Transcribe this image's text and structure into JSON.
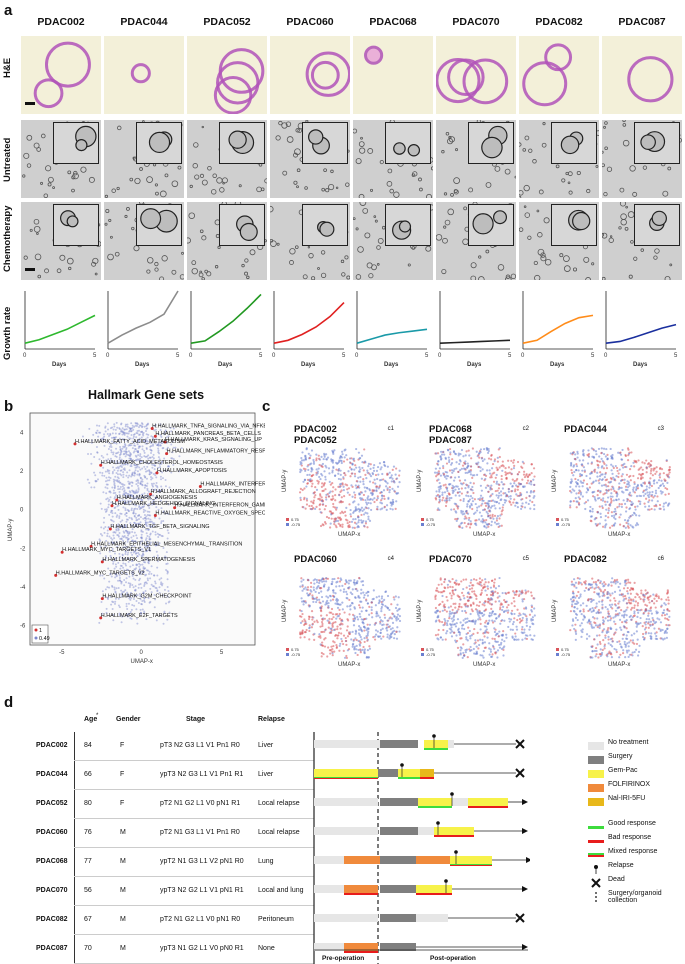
{
  "panels": {
    "a": "a",
    "b": "b",
    "c": "c",
    "d": "d"
  },
  "panel_a": {
    "samples": [
      "PDAC002",
      "PDAC044",
      "PDAC052",
      "PDAC060",
      "PDAC068",
      "PDAC070",
      "PDAC082",
      "PDAC087"
    ],
    "rows": {
      "he": "H&E",
      "untreated": "Untreated",
      "chemo": "Chemotherapy",
      "growth": "Growth rate"
    },
    "x_axis_label": "Days",
    "x_ticks": [
      "0",
      "5"
    ],
    "colors": [
      "#2eb82e",
      "#8c8c8c",
      "#229922",
      "#e02020",
      "#1a9aa8",
      "#222222",
      "#ff8c1a",
      "#1a2f9e"
    ]
  },
  "chart_data": [
    {
      "type": "line",
      "title": "Growth rate",
      "xlabel": "Days",
      "ylabel": "Growth rate",
      "x": [
        0,
        1,
        2,
        3,
        4,
        5
      ],
      "xlim": [
        0,
        5
      ],
      "ylim": [
        0,
        10
      ],
      "series": [
        {
          "name": "PDAC002",
          "values": [
            1.0,
            1.6,
            2.5,
            3.4,
            4.6,
            5.8
          ]
        },
        {
          "name": "PDAC044",
          "values": [
            1.0,
            2.4,
            3.6,
            4.6,
            6.0,
            10.0
          ]
        },
        {
          "name": "PDAC052",
          "values": [
            1.0,
            1.4,
            3.0,
            4.8,
            7.0,
            9.4
          ]
        },
        {
          "name": "PDAC060",
          "values": [
            1.0,
            1.5,
            2.5,
            3.8,
            5.6,
            8.0
          ]
        },
        {
          "name": "PDAC068",
          "values": [
            1.0,
            1.7,
            2.4,
            2.8,
            3.1,
            3.4
          ]
        },
        {
          "name": "PDAC070",
          "values": [
            1.0,
            1.1,
            1.2,
            1.3,
            1.4,
            1.5
          ]
        },
        {
          "name": "PDAC082",
          "values": [
            1.0,
            1.5,
            3.0,
            4.4,
            5.4,
            5.8
          ]
        },
        {
          "name": "PDAC087",
          "values": [
            1.0,
            1.3,
            2.0,
            2.8,
            3.6,
            4.2
          ]
        }
      ]
    },
    {
      "type": "scatter",
      "title": "Hallmark Gene sets",
      "xlabel": "UMAP-x",
      "ylabel": "UMAP-y",
      "xlim": [
        -7,
        7
      ],
      "ylim": [
        -7,
        5
      ],
      "x_ticks": [
        -5,
        0,
        5
      ],
      "y_ticks": [
        -6,
        -4,
        -2,
        0,
        2,
        4
      ],
      "legend": [
        "1",
        "0.49"
      ],
      "annotations": [
        {
          "label": "H.HALLMARK_TNFA_SIGNALING_VIA_NFKB",
          "x": 0.6,
          "y": 4.2
        },
        {
          "label": "H.HALLMARK_PANCREAS_BETA_CELLS",
          "x": 0.8,
          "y": 3.8
        },
        {
          "label": "H.HALLMARK_KRAS_SIGNALING_UP",
          "x": 1.4,
          "y": 3.5
        },
        {
          "label": "H.HALLMARK_FATTY_ACID_METABOLISM",
          "x": -4.2,
          "y": 3.4
        },
        {
          "label": "H.HALLMARK_INFLAMMATORY_RESPONSE",
          "x": 1.5,
          "y": 2.9
        },
        {
          "label": "H.HALLMARK_CHOLESTEROL_HOMEOSTASIS",
          "x": -2.6,
          "y": 2.3
        },
        {
          "label": "H.HALLMARK_APOPTOSIS",
          "x": 0.9,
          "y": 1.9
        },
        {
          "label": "H.HALLMARK_INTERFERON_ALPHA_RESPONSE",
          "x": 3.6,
          "y": 1.2
        },
        {
          "label": "H.HALLMARK_ALLOGRAFT_REJECTION",
          "x": 0.5,
          "y": 0.8
        },
        {
          "label": "H.HALLMARK_ANGIOGENESIS",
          "x": -1.6,
          "y": 0.5
        },
        {
          "label": "H.HALLMARK_HEDGEHOG_SIGNALING",
          "x": -1.9,
          "y": 0.2
        },
        {
          "label": "H.HALLMARK_INTERFERON_GAMMA_RESPONSE",
          "x": 2.0,
          "y": 0.1
        },
        {
          "label": "H.HALLMARK_REACTIVE_OXYGEN_SPECIES_PATHWAY",
          "x": 0.8,
          "y": -0.3
        },
        {
          "label": "H.HALLMARK_TGF_BETA_SIGNALING",
          "x": -2.0,
          "y": -1.0
        },
        {
          "label": "H.HALLMARK_EPITHELIAL_MESENCHYMAL_TRANSITION",
          "x": -3.2,
          "y": -1.9
        },
        {
          "label": "H.HALLMARK_MYC_TARGETS_V1",
          "x": -5.0,
          "y": -2.2
        },
        {
          "label": "H.HALLMARK_SPERMATOGENESIS",
          "x": -2.5,
          "y": -2.7
        },
        {
          "label": "H.HALLMARK_MYC_TARGETS_V2",
          "x": -5.4,
          "y": -3.4
        },
        {
          "label": "H.HALLMARK_G2M_CHECKPOINT",
          "x": -2.5,
          "y": -4.6
        },
        {
          "label": "H.HALLMARK_E2F_TARGETS",
          "x": -2.6,
          "y": -5.6
        }
      ]
    }
  ],
  "panel_c": {
    "clusters": [
      {
        "id": "c1",
        "label1": "PDAC002",
        "label2": "PDAC052"
      },
      {
        "id": "c2",
        "label1": "PDAC068",
        "label2": "PDAC087"
      },
      {
        "id": "c3",
        "label1": "PDAC044",
        "label2": ""
      },
      {
        "id": "c4",
        "label1": "PDAC060",
        "label2": ""
      },
      {
        "id": "c5",
        "label1": "PDAC070",
        "label2": ""
      },
      {
        "id": "c6",
        "label1": "PDAC082",
        "label2": ""
      }
    ],
    "xlabel": "UMAP-x",
    "ylabel": "UMAP-y",
    "legend": [
      "0.75",
      "-0.75"
    ]
  },
  "panel_d": {
    "headers": {
      "age": "Age",
      "age_mark": "*",
      "gender": "Gender",
      "stage": "Stage",
      "relapse": "Relapse"
    },
    "rows": [
      {
        "id": "PDAC002",
        "age": "84",
        "gender": "F",
        "stage": "pT3 N2 G3 L1 V1 Pn1 R0",
        "relapse": "Liver"
      },
      {
        "id": "PDAC044",
        "age": "66",
        "gender": "F",
        "stage": "ypT3 N2 G3 L1 V1 Pn1 R1",
        "relapse": "Liver"
      },
      {
        "id": "PDAC052",
        "age": "80",
        "gender": "F",
        "stage": "pT2 N1 G2 L1 V0 pN1 R1",
        "relapse": "Local relapse"
      },
      {
        "id": "PDAC060",
        "age": "76",
        "gender": "M",
        "stage": "pT2 N1 G3 L1 V1 Pn1 R0",
        "relapse": "Local relapse"
      },
      {
        "id": "PDAC068",
        "age": "77",
        "gender": "M",
        "stage": "ypT2 N1 G3 L1 V2 pN1 R0",
        "relapse": "Lung"
      },
      {
        "id": "PDAC070",
        "age": "56",
        "gender": "M",
        "stage": "ypT3 N2 G2 L1 V1 pN1 R1",
        "relapse": "Local and lung"
      },
      {
        "id": "PDAC082",
        "age": "67",
        "gender": "M",
        "stage": "pT2 N1 G2 L1 V0 pN1 R0",
        "relapse": "Peritoneum"
      },
      {
        "id": "PDAC087",
        "age": "70",
        "gender": "M",
        "stage": "ypT3 N1 G2 L1 V0 pN0 R1",
        "relapse": "None"
      }
    ],
    "timeline_labels": {
      "pre": "Pre-operation",
      "post": "Post-operation"
    },
    "legend": {
      "no_treatment": "No treatment",
      "surgery": "Surgery",
      "gem_pac": "Gem-Pac",
      "folfirinox": "FOLFIRINOX",
      "nal_iri": "Nal-IRI-5FU",
      "good": "Good response",
      "bad": "Bad response",
      "mixed": "Mixed response",
      "relapse": "Relapse",
      "dead": "Dead",
      "surgery_collection": "Surgery/organoid collection"
    },
    "colors": {
      "no_treatment": "#e6e6e6",
      "surgery": "#7f7f7f",
      "gem_pac": "#f7f24a",
      "folfirinox": "#f08a3c",
      "nal_iri": "#e8b81a",
      "good": "#3ddc3d",
      "bad": "#e81c1c"
    }
  }
}
